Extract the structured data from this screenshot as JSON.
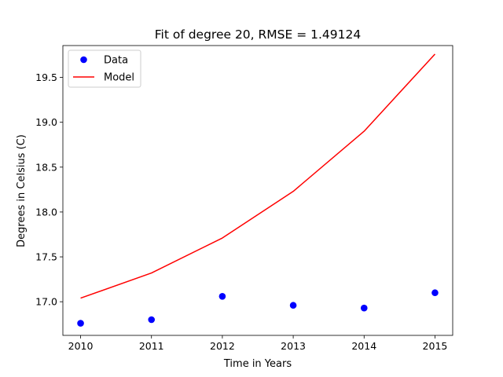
{
  "chart_data": {
    "type": "line",
    "title": "Fit of degree 20, RMSE = 1.49124",
    "xlabel": "Time in Years",
    "ylabel": "Degrees in Celsius (C)",
    "xlim": [
      2009.75,
      2015.25
    ],
    "ylim": [
      16.625,
      19.855
    ],
    "xticks": [
      2010,
      2011,
      2012,
      2013,
      2014,
      2015
    ],
    "xtick_labels": [
      "2010",
      "2011",
      "2012",
      "2013",
      "2014",
      "2015"
    ],
    "yticks": [
      17.0,
      17.5,
      18.0,
      18.5,
      19.0,
      19.5
    ],
    "ytick_labels": [
      "17.0",
      "17.5",
      "18.0",
      "18.5",
      "19.0",
      "19.5"
    ],
    "grid": false,
    "legend_position": "top-left",
    "series": [
      {
        "name": "Data",
        "style": "points",
        "color": "#0000ff",
        "x": [
          2010,
          2011,
          2012,
          2013,
          2014,
          2015
        ],
        "y": [
          16.76,
          16.8,
          17.06,
          16.96,
          16.93,
          17.1
        ]
      },
      {
        "name": "Model",
        "style": "line",
        "color": "#ff0000",
        "x": [
          2010,
          2011,
          2012,
          2013,
          2014,
          2015
        ],
        "y": [
          17.04,
          17.32,
          17.71,
          18.23,
          18.9,
          19.76
        ]
      }
    ]
  }
}
